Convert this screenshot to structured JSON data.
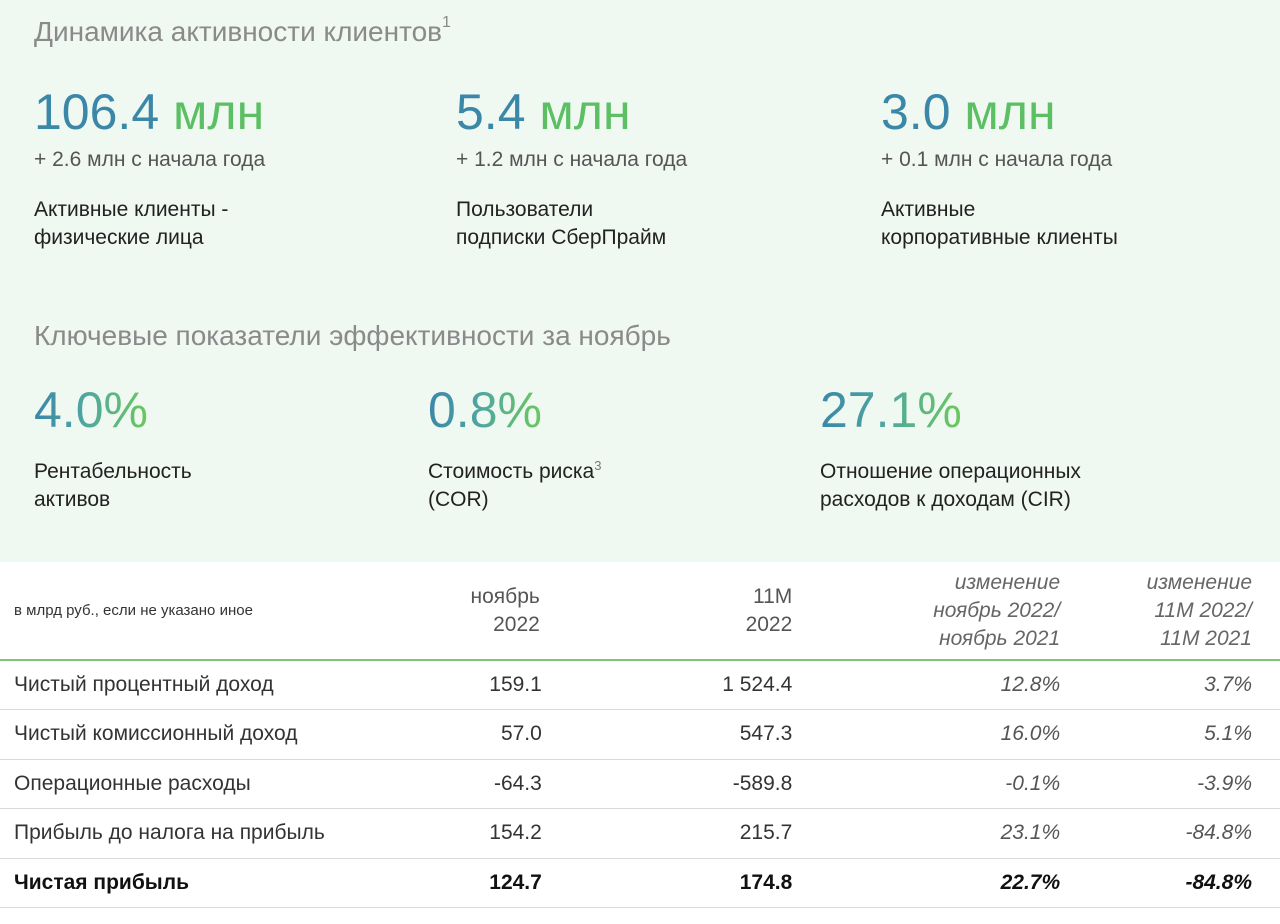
{
  "clients": {
    "title": "Динамика активности клиентов",
    "title_sup": "1",
    "items": [
      {
        "value": "106.4",
        "unit": "млн",
        "delta": "+ 2.6 млн с начала года",
        "label_1": "Активные клиенты -",
        "label_2": "физические лица"
      },
      {
        "value": "5.4",
        "unit": "млн",
        "delta": "+ 1.2 млн с начала года",
        "label_1": "Пользователи",
        "label_2": "подписки СберПрайм"
      },
      {
        "value": "3.0",
        "unit": "млн",
        "delta": "+ 0.1 млн с начала года",
        "label_1": "Активные",
        "label_2": "корпоративные клиенты"
      }
    ]
  },
  "efficiency": {
    "title": "Ключевые показатели эффективности за ноябрь",
    "items": [
      {
        "value": "4.0%",
        "label_1": "Рентабельность",
        "label_2": "активов",
        "sup": ""
      },
      {
        "value": "0.8%",
        "label_1": "Стоимость риска",
        "label_2": "(COR)",
        "sup": "3"
      },
      {
        "value": "27.1%",
        "label_1": "Отношение операционных",
        "label_2": "расходов к доходам (CIR)",
        "sup": ""
      }
    ]
  },
  "table": {
    "units_note": "в млрд руб., если не указано иное",
    "headers": [
      {
        "line1": "ноябрь",
        "line2": "2022",
        "line3": ""
      },
      {
        "line1": "11M",
        "line2": "2022",
        "line3": ""
      },
      {
        "line1": "изменение",
        "line2": "ноябрь 2022/",
        "line3": "ноябрь 2021"
      },
      {
        "line1": "изменение",
        "line2": "11M 2022/",
        "line3": "11M 2021"
      }
    ],
    "rows": [
      {
        "name": "Чистый процентный доход",
        "nov": "159.1",
        "m11": "1 524.4",
        "chg_nov": "12.8%",
        "chg_11m": "3.7%"
      },
      {
        "name": "Чистый комиссионный доход",
        "nov": "57.0",
        "m11": "547.3",
        "chg_nov": "16.0%",
        "chg_11m": "5.1%"
      },
      {
        "name": "Операционные расходы",
        "nov": "-64.3",
        "m11": "-589.8",
        "chg_nov": "-0.1%",
        "chg_11m": "-3.9%"
      },
      {
        "name": "Прибыль до налога на прибыль",
        "nov": "154.2",
        "m11": "215.7",
        "chg_nov": "23.1%",
        "chg_11m": "-84.8%"
      },
      {
        "name": "Чистая прибыль",
        "nov": "124.7",
        "m11": "174.8",
        "chg_nov": "22.7%",
        "chg_11m": "-84.8%"
      }
    ]
  },
  "colors": {
    "teal": "#3a87a8",
    "green": "#5cbf64",
    "panel_bg": "#f0f8f2",
    "rule": "#7cc67a"
  }
}
